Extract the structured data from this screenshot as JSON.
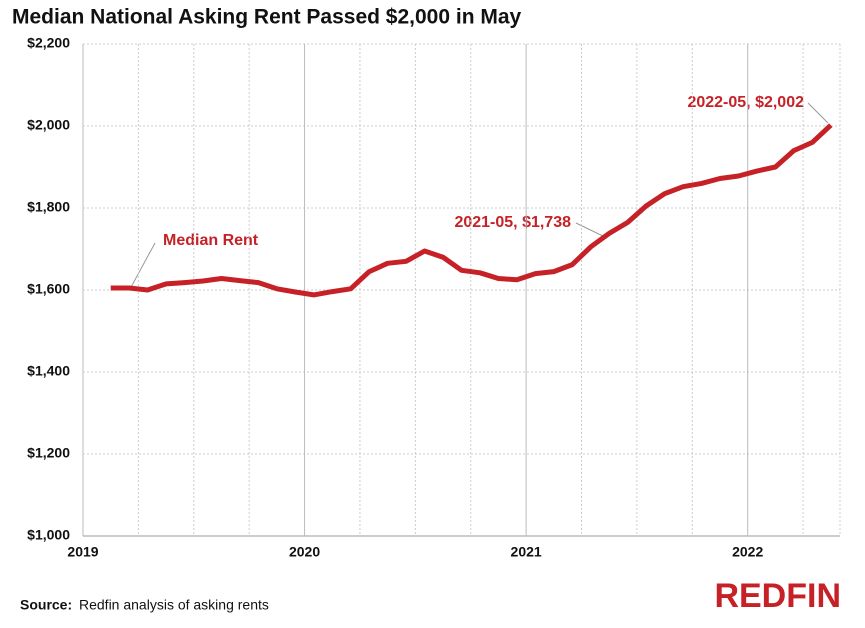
{
  "chart_data": {
    "type": "line",
    "title": "Median National Asking Rent Passed $2,000 in May",
    "x": [
      "2019-02",
      "2019-03",
      "2019-04",
      "2019-05",
      "2019-06",
      "2019-07",
      "2019-08",
      "2019-09",
      "2019-10",
      "2019-11",
      "2019-12",
      "2020-01",
      "2020-02",
      "2020-03",
      "2020-04",
      "2020-05",
      "2020-06",
      "2020-07",
      "2020-08",
      "2020-09",
      "2020-10",
      "2020-11",
      "2020-12",
      "2021-01",
      "2021-02",
      "2021-03",
      "2021-04",
      "2021-05",
      "2021-06",
      "2021-07",
      "2021-08",
      "2021-09",
      "2021-10",
      "2021-11",
      "2021-12",
      "2022-01",
      "2022-02",
      "2022-03",
      "2022-04",
      "2022-05"
    ],
    "series": [
      {
        "name": "Median Rent",
        "color": "#c62127",
        "values": [
          1605,
          1605,
          1600,
          1615,
          1618,
          1622,
          1628,
          1623,
          1618,
          1603,
          1595,
          1588,
          1596,
          1603,
          1645,
          1665,
          1670,
          1695,
          1680,
          1648,
          1642,
          1628,
          1625,
          1640,
          1645,
          1662,
          1705,
          1738,
          1765,
          1805,
          1835,
          1852,
          1860,
          1872,
          1878,
          1890,
          1900,
          1940,
          1960,
          2002
        ]
      }
    ],
    "annotations": [
      "2021-05, $1,738",
      "2022-05, $2,002"
    ],
    "xlim": [
      "2019-01",
      "2022-06"
    ],
    "xticks": [
      {
        "value": "2019-01",
        "label": "2019"
      },
      {
        "value": "2020-01",
        "label": "2020"
      },
      {
        "value": "2021-01",
        "label": "2021"
      },
      {
        "value": "2022-01",
        "label": "2022"
      }
    ],
    "ylim": [
      1000,
      2200
    ],
    "yticks": [
      {
        "value": 1000,
        "label": "$1,000"
      },
      {
        "value": 1200,
        "label": "$1,200"
      },
      {
        "value": 1400,
        "label": "$1,400"
      },
      {
        "value": 1600,
        "label": "$1,600"
      },
      {
        "value": 1800,
        "label": "$1,800"
      },
      {
        "value": 2000,
        "label": "$2,000"
      },
      {
        "value": 2200,
        "label": "$2,200"
      }
    ],
    "grid": true,
    "source_label": "Source:",
    "source": "Redfin analysis of asking rents",
    "logo": "REDFIN"
  }
}
